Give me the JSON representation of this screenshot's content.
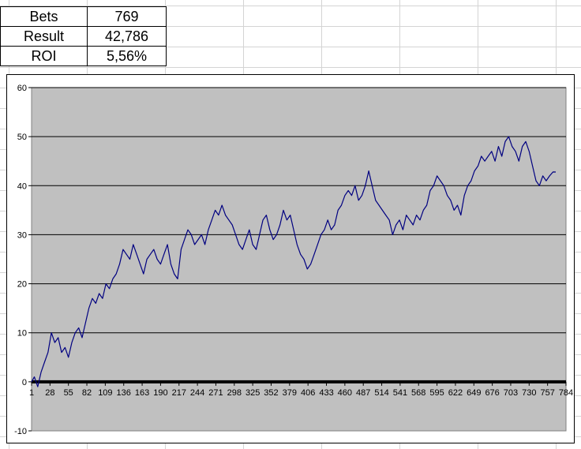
{
  "stats": [
    {
      "label": "Bets",
      "value": "769"
    },
    {
      "label": "Result",
      "value": "42,786"
    },
    {
      "label": "ROI",
      "value": "5,56%"
    }
  ],
  "colors": {
    "plot_background": "#c0c0c0",
    "series_line": "#000080",
    "gridline": "#000000",
    "zero_axis": "#000000"
  },
  "chart_data": {
    "type": "line",
    "title": "",
    "xlabel": "",
    "ylabel": "",
    "ylim": [
      -10,
      60
    ],
    "xlim": [
      1,
      784
    ],
    "y_ticks": [
      "-10",
      "0",
      "10",
      "20",
      "30",
      "40",
      "50",
      "60"
    ],
    "x_ticks": [
      "1",
      "28",
      "55",
      "82",
      "109",
      "136",
      "163",
      "190",
      "217",
      "244",
      "271",
      "298",
      "325",
      "352",
      "379",
      "406",
      "433",
      "460",
      "487",
      "514",
      "541",
      "568",
      "595",
      "622",
      "649",
      "676",
      "703",
      "730",
      "757",
      "784"
    ],
    "grid": "horizontal major",
    "series": [
      {
        "x": [
          1,
          5,
          10,
          15,
          20,
          25,
          30,
          35,
          40,
          45,
          50,
          55,
          60,
          65,
          70,
          75,
          80,
          85,
          90,
          95,
          100,
          105,
          110,
          115,
          120,
          125,
          130,
          135,
          140,
          145,
          150,
          155,
          160,
          165,
          170,
          175,
          180,
          185,
          190,
          195,
          200,
          205,
          210,
          215,
          220,
          225,
          230,
          235,
          240,
          245,
          250,
          255,
          260,
          265,
          270,
          275,
          280,
          285,
          290,
          295,
          300,
          305,
          310,
          315,
          320,
          325,
          330,
          335,
          340,
          345,
          350,
          355,
          360,
          365,
          370,
          375,
          380,
          385,
          390,
          395,
          400,
          405,
          410,
          415,
          420,
          425,
          430,
          435,
          440,
          445,
          450,
          455,
          460,
          465,
          470,
          475,
          480,
          485,
          490,
          495,
          500,
          505,
          510,
          515,
          520,
          525,
          530,
          535,
          540,
          545,
          550,
          555,
          560,
          565,
          570,
          575,
          580,
          585,
          590,
          595,
          600,
          605,
          610,
          615,
          620,
          625,
          630,
          635,
          640,
          645,
          650,
          655,
          660,
          665,
          670,
          675,
          680,
          685,
          690,
          695,
          700,
          705,
          710,
          715,
          720,
          725,
          730,
          735,
          740,
          745,
          750,
          755,
          760,
          765,
          769
        ],
        "y": [
          0,
          1,
          -1,
          2,
          4,
          6,
          10,
          8,
          9,
          6,
          7,
          5,
          8,
          10,
          11,
          9,
          12,
          15,
          17,
          16,
          18,
          17,
          20,
          19,
          21,
          22,
          24,
          27,
          26,
          25,
          28,
          26,
          24,
          22,
          25,
          26,
          27,
          25,
          24,
          26,
          28,
          24,
          22,
          21,
          27,
          29,
          31,
          30,
          28,
          29,
          30,
          28,
          31,
          33,
          35,
          34,
          36,
          34,
          33,
          32,
          30,
          28,
          27,
          29,
          31,
          28,
          27,
          30,
          33,
          34,
          31,
          29,
          30,
          32,
          35,
          33,
          34,
          31,
          28,
          26,
          25,
          23,
          24,
          26,
          28,
          30,
          31,
          33,
          31,
          32,
          35,
          36,
          38,
          39,
          38,
          40,
          37,
          38,
          40,
          43,
          40,
          37,
          36,
          35,
          34,
          33,
          30,
          32,
          33,
          31,
          34,
          33,
          32,
          34,
          33,
          35,
          36,
          39,
          40,
          42,
          41,
          40,
          38,
          37,
          35,
          36,
          34,
          38,
          40,
          41,
          43,
          44,
          46,
          45,
          46,
          47,
          45,
          48,
          46,
          49,
          50,
          48,
          47,
          45,
          48,
          49,
          47,
          44,
          41,
          40,
          42,
          41,
          42,
          42.8,
          42.786
        ]
      }
    ]
  }
}
